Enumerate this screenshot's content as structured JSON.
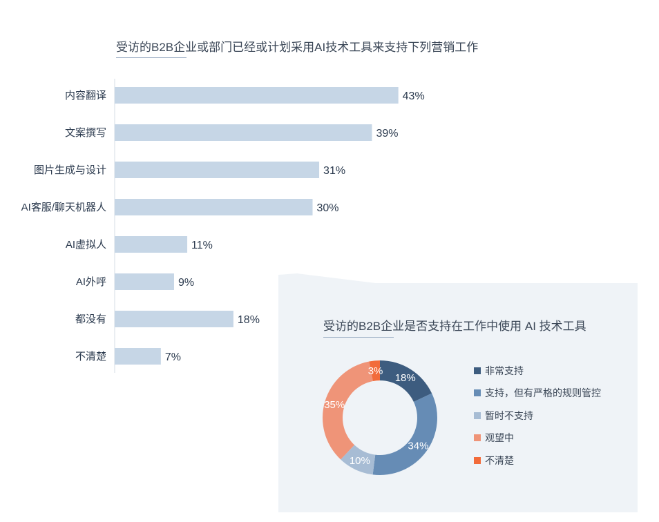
{
  "bar_chart": {
    "title": "受访的B2B企业或部门已经或计划采用AI技术工具来支持下列营销工作"
  },
  "donut_chart": {
    "title": "受访的B2B企业是否支持在工作中使用 AI 技术工具"
  },
  "chart_data": [
    {
      "type": "bar",
      "orientation": "horizontal",
      "title": "受访的B2B企业或部门已经或计划采用AI技术工具来支持下列营销工作",
      "categories": [
        "内容翻译",
        "文案撰写",
        "图片生成与设计",
        "AI客服/聊天机器人",
        "AI虚拟人",
        "AI外呼",
        "都没有",
        "不清楚"
      ],
      "values": [
        43,
        39,
        31,
        30,
        11,
        9,
        18,
        7
      ],
      "data_labels": [
        "43%",
        "39%",
        "31%",
        "30%",
        "11%",
        "9%",
        "18%",
        "7%"
      ],
      "unit": "%",
      "xlim": [
        0,
        100
      ],
      "grid": false,
      "bar_color": "#c6d6e6"
    },
    {
      "type": "pie",
      "style": "donut",
      "title": "受访的B2B企业是否支持在工作中使用 AI 技术工具",
      "categories": [
        "非常支持",
        "支持，但有严格的规则管控",
        "暂时不支持",
        "观望中",
        "不清楚"
      ],
      "values": [
        18,
        34,
        10,
        35,
        3
      ],
      "data_labels": [
        "18%",
        "34%",
        "10%",
        "35%",
        "3%"
      ],
      "colors": [
        "#3d5c7f",
        "#668cb5",
        "#a7bcd4",
        "#ef9478",
        "#f26b3a"
      ],
      "legend": "right"
    }
  ]
}
